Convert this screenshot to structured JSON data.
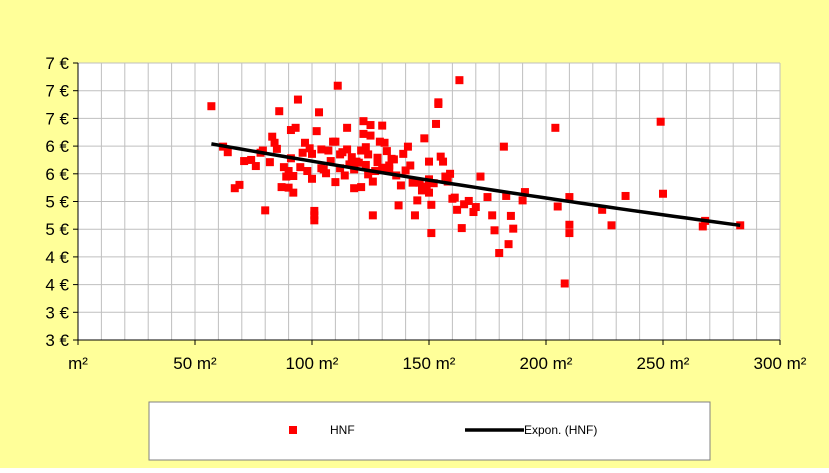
{
  "colors": {
    "background": "#ffff99",
    "plot_area": "#ffffff",
    "grid": "#bfbfbf",
    "marker": "#ff0000",
    "trendline": "#000000",
    "text": "#000000"
  },
  "chart_data": {
    "type": "scatter",
    "title": "",
    "xlabel": "",
    "ylabel": "",
    "grid": true,
    "legend_position": "bottom",
    "xlim": [
      0,
      300
    ],
    "ylim": [
      2.5,
      7.5
    ],
    "x_ticks": [
      0,
      50,
      100,
      150,
      200,
      250,
      300
    ],
    "x_tick_labels": [
      "m²",
      "50 m²",
      "100 m²",
      "150 m²",
      "200 m²",
      "250 m²",
      "300 m²"
    ],
    "y_ticks": [
      2.5,
      3.0,
      3.5,
      4.0,
      4.5,
      5.0,
      5.5,
      6.0,
      6.5,
      7.0,
      7.5
    ],
    "y_tick_labels": [
      "3 €",
      "3 €",
      "4 €",
      "4 €",
      "5 €",
      "5 €",
      "6 €",
      "6 €",
      "7 €",
      "7 €",
      "7 €"
    ],
    "series": [
      {
        "name": "HNF",
        "marker": "square",
        "points": [
          [
            57,
            6.72
          ],
          [
            62,
            5.99
          ],
          [
            64,
            5.89
          ],
          [
            67,
            5.24
          ],
          [
            69,
            5.3
          ],
          [
            71,
            5.73
          ],
          [
            74,
            5.75
          ],
          [
            76,
            5.64
          ],
          [
            78,
            5.88
          ],
          [
            79,
            5.92
          ],
          [
            80,
            4.84
          ],
          [
            82,
            5.71
          ],
          [
            83,
            6.17
          ],
          [
            84,
            6.06
          ],
          [
            85,
            5.95
          ],
          [
            86,
            6.63
          ],
          [
            87,
            5.26
          ],
          [
            88,
            5.62
          ],
          [
            89,
            5.45
          ],
          [
            90,
            5.25
          ],
          [
            90,
            5.55
          ],
          [
            91,
            5.78
          ],
          [
            91,
            6.29
          ],
          [
            92,
            5.16
          ],
          [
            92,
            5.46
          ],
          [
            93,
            6.33
          ],
          [
            94,
            6.84
          ],
          [
            95,
            5.62
          ],
          [
            96,
            5.88
          ],
          [
            97,
            6.06
          ],
          [
            98,
            5.55
          ],
          [
            99,
            5.96
          ],
          [
            100,
            5.41
          ],
          [
            100,
            5.86
          ],
          [
            101,
            4.66
          ],
          [
            101,
            4.75
          ],
          [
            101,
            4.83
          ],
          [
            102,
            6.27
          ],
          [
            103,
            6.61
          ],
          [
            104,
            5.6
          ],
          [
            104,
            5.94
          ],
          [
            105,
            5.58
          ],
          [
            106,
            5.51
          ],
          [
            107,
            5.92
          ],
          [
            108,
            5.73
          ],
          [
            109,
            6.08
          ],
          [
            110,
            6.08
          ],
          [
            110,
            5.35
          ],
          [
            111,
            7.09
          ],
          [
            112,
            5.6
          ],
          [
            112,
            5.85
          ],
          [
            113,
            5.89
          ],
          [
            114,
            5.47
          ],
          [
            115,
            5.94
          ],
          [
            115,
            6.33
          ],
          [
            116,
            5.67
          ],
          [
            117,
            5.8
          ],
          [
            118,
            5.24
          ],
          [
            118,
            5.58
          ],
          [
            119,
            5.72
          ],
          [
            120,
            5.7
          ],
          [
            121,
            5.26
          ],
          [
            121,
            5.92
          ],
          [
            122,
            6.22
          ],
          [
            122,
            6.45
          ],
          [
            123,
            5.66
          ],
          [
            123,
            5.98
          ],
          [
            124,
            5.49
          ],
          [
            124,
            5.85
          ],
          [
            125,
            6.38
          ],
          [
            125,
            6.19
          ],
          [
            126,
            5.36
          ],
          [
            126,
            4.75
          ],
          [
            127,
            5.55
          ],
          [
            128,
            5.79
          ],
          [
            128,
            5.71
          ],
          [
            129,
            6.08
          ],
          [
            130,
            6.37
          ],
          [
            130,
            5.61
          ],
          [
            131,
            6.06
          ],
          [
            132,
            5.91
          ],
          [
            133,
            5.59
          ],
          [
            133,
            5.65
          ],
          [
            134,
            5.77
          ],
          [
            135,
            5.76
          ],
          [
            136,
            5.47
          ],
          [
            137,
            4.93
          ],
          [
            138,
            5.29
          ],
          [
            139,
            5.86
          ],
          [
            140,
            5.56
          ],
          [
            141,
            5.99
          ],
          [
            142,
            5.65
          ],
          [
            143,
            5.34
          ],
          [
            144,
            4.75
          ],
          [
            145,
            5.02
          ],
          [
            146,
            5.34
          ],
          [
            147,
            5.2
          ],
          [
            148,
            6.14
          ],
          [
            149,
            5.27
          ],
          [
            150,
            5.4
          ],
          [
            150,
            5.16
          ],
          [
            150,
            5.72
          ],
          [
            151,
            4.94
          ],
          [
            151,
            4.43
          ],
          [
            152,
            5.33
          ],
          [
            153,
            6.4
          ],
          [
            154,
            6.76
          ],
          [
            154,
            6.79
          ],
          [
            155,
            5.81
          ],
          [
            156,
            5.72
          ],
          [
            157,
            5.45
          ],
          [
            158,
            5.36
          ],
          [
            159,
            5.5
          ],
          [
            160,
            5.05
          ],
          [
            161,
            5.07
          ],
          [
            162,
            4.85
          ],
          [
            163,
            7.19
          ],
          [
            164,
            4.52
          ],
          [
            165,
            4.95
          ],
          [
            167,
            5.01
          ],
          [
            169,
            4.81
          ],
          [
            170,
            4.9
          ],
          [
            172,
            5.45
          ],
          [
            175,
            5.08
          ],
          [
            177,
            4.75
          ],
          [
            178,
            4.48
          ],
          [
            180,
            4.07
          ],
          [
            182,
            5.99
          ],
          [
            183,
            5.1
          ],
          [
            184,
            4.23
          ],
          [
            185,
            4.74
          ],
          [
            186,
            4.51
          ],
          [
            190,
            5.02
          ],
          [
            191,
            5.17
          ],
          [
            204,
            6.33
          ],
          [
            205,
            4.91
          ],
          [
            208,
            3.52
          ],
          [
            210,
            4.58
          ],
          [
            210,
            5.08
          ],
          [
            210,
            4.43
          ],
          [
            224,
            4.85
          ],
          [
            228,
            4.57
          ],
          [
            234,
            5.1
          ],
          [
            249,
            6.44
          ],
          [
            250,
            5.14
          ],
          [
            267,
            4.55
          ],
          [
            268,
            4.65
          ],
          [
            283,
            4.57
          ]
        ]
      },
      {
        "name": "Expon. (HNF)",
        "type": "line",
        "model": "exponential",
        "x_range": [
          57,
          283
        ],
        "y_start": 6.04,
        "y_end": 4.57
      }
    ]
  }
}
